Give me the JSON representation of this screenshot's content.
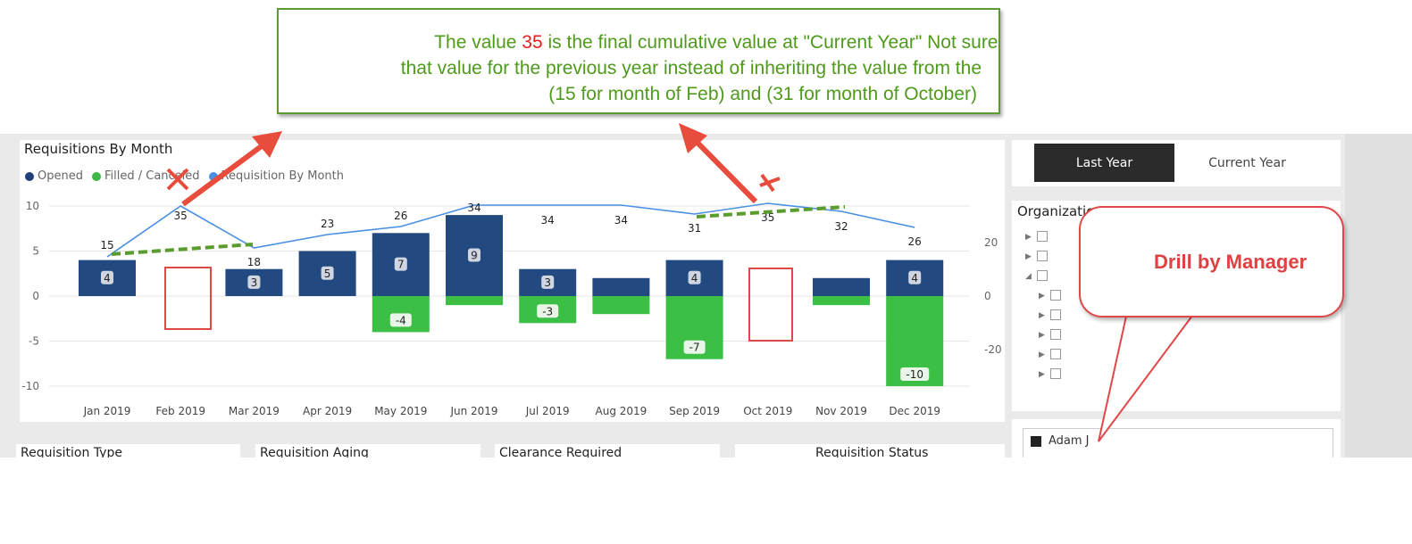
{
  "annotation": {
    "line1_pre": "The value ",
    "line1_value": "35",
    "line1_post": " is the final cumulative value at \"Current Year\"  Not sure i",
    "line2": "that value for the previous year instead of inheriting the value from the",
    "line3": "(15 for month of Feb) and (31 for month of October)",
    "callout_label": "Drill by Manager"
  },
  "chart": {
    "title": "Requisitions By Month",
    "legend": [
      {
        "label": "Opened",
        "color": "#1f3f7a"
      },
      {
        "label": "Filled / Canceled",
        "color": "#3cb84a"
      },
      {
        "label": "Requisition By Month",
        "color": "#4a90e2"
      }
    ]
  },
  "chart_data": {
    "type": "bar",
    "title": "Requisitions By Month",
    "categories": [
      "Jan 2019",
      "Feb 2019",
      "Mar 2019",
      "Apr 2019",
      "May 2019",
      "Jun 2019",
      "Jul 2019",
      "Aug 2019",
      "Sep 2019",
      "Oct 2019",
      "Nov 2019",
      "Dec 2019"
    ],
    "series": [
      {
        "name": "Opened",
        "values": [
          4,
          0,
          3,
          5,
          7,
          9,
          3,
          2,
          4,
          0,
          2,
          4
        ],
        "labels": [
          "4",
          "",
          "3",
          "5",
          "7",
          "9",
          "3",
          "",
          "4",
          "",
          "",
          "4"
        ]
      },
      {
        "name": "Filled / Canceled",
        "values": [
          0,
          0,
          0,
          0,
          -4,
          -1,
          -3,
          -2,
          -7,
          0,
          -1,
          -10
        ],
        "labels": [
          "",
          "",
          "",
          "",
          "-4",
          "",
          "-3",
          "",
          "-7",
          "",
          "",
          "-10"
        ]
      },
      {
        "name": "Requisition By Month",
        "type": "line",
        "axis": "right",
        "values": [
          15,
          35,
          18,
          23,
          26,
          34,
          34,
          34,
          31,
          35,
          32,
          26
        ]
      }
    ],
    "y_left": {
      "ticks": [
        "10",
        "5",
        "0",
        "-5",
        "-10"
      ],
      "range": [
        -10,
        10
      ]
    },
    "y_right": {
      "ticks": [
        "20",
        "0",
        "-20"
      ]
    }
  },
  "slicer": {
    "options": [
      "Last Year",
      "Current Year"
    ],
    "selected": "Last Year"
  },
  "org": {
    "title": "Organization"
  },
  "bottom_titles": [
    "Requisition Type",
    "Requisition Aging",
    "Clearance Required",
    "Requisition Status"
  ],
  "managers": [
    "Adam J"
  ]
}
